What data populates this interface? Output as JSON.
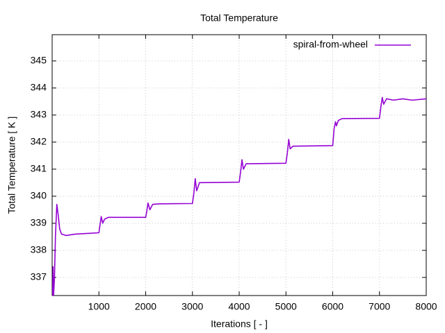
{
  "chart_data": {
    "type": "line",
    "title": "Total Temperature",
    "x_label": "Iterations [ - ]",
    "y_label": "Total Temperature [ K ]",
    "xlim": [
      0,
      8000
    ],
    "xticks": [
      1000,
      2000,
      3000,
      4000,
      5000,
      6000,
      7000,
      8000
    ],
    "ylim": [
      336.33,
      345.97
    ],
    "yticks": [
      337,
      338,
      339,
      340,
      341,
      342,
      343,
      344,
      345
    ],
    "grid": true,
    "legend": "top-right",
    "x": [
      0,
      10,
      20,
      30,
      50,
      70,
      100,
      130,
      160,
      200,
      300,
      500,
      800,
      1000,
      1020,
      1050,
      1080,
      1120,
      1200,
      2000,
      2020,
      2050,
      2090,
      2150,
      2300,
      3000,
      3030,
      3060,
      3090,
      3150,
      4000,
      4030,
      4060,
      4090,
      4150,
      5000,
      5030,
      5060,
      5090,
      5150,
      6000,
      6030,
      6060,
      6080,
      6120,
      6200,
      7000,
      7030,
      7060,
      7090,
      7150,
      7300,
      7500,
      7700,
      8000
    ],
    "series": [
      {
        "name": "spiral-from-wheel",
        "color": "#9400d3",
        "values": [
          336.3,
          336.4,
          337.4,
          336.3,
          337,
          338.5,
          339.7,
          339.3,
          338.8,
          338.6,
          338.55,
          338.6,
          338.63,
          338.65,
          338.9,
          339.25,
          339.0,
          339.15,
          339.22,
          339.22,
          339.4,
          339.75,
          339.5,
          339.7,
          339.72,
          339.73,
          340.1,
          340.65,
          340.2,
          340.5,
          340.52,
          340.9,
          341.35,
          341.0,
          341.2,
          341.22,
          341.6,
          342.1,
          341.75,
          341.85,
          341.87,
          342.5,
          342.75,
          342.6,
          342.8,
          342.87,
          342.88,
          343.3,
          343.65,
          343.4,
          343.6,
          343.55,
          343.6,
          343.55,
          343.6
        ]
      }
    ]
  }
}
